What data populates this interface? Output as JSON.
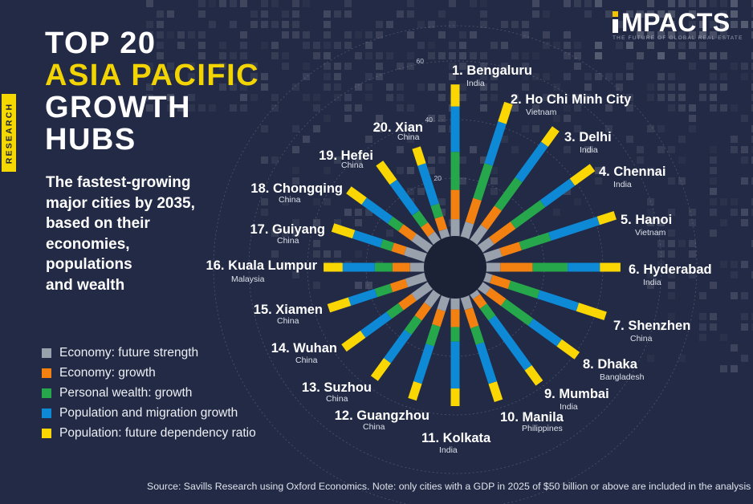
{
  "research_tab": "RESEARCH",
  "title": {
    "line1": "TOP 20",
    "line2": "ASIA PACIFIC",
    "line3": "GROWTH",
    "line4": "HUBS"
  },
  "subtitle_lines": [
    "The fastest-growing",
    "major cities by 2035,",
    "based on their",
    "economies,",
    "populations",
    "and wealth"
  ],
  "logo": {
    "text": "MPACTS",
    "tagline": "THE FUTURE OF GLOBAL REAL ESTATE"
  },
  "legend": [
    {
      "label": "Economy: future strength",
      "color": "#99A1AC"
    },
    {
      "label": "Economy: growth",
      "color": "#F28111"
    },
    {
      "label": "Personal wealth: growth",
      "color": "#26A74B"
    },
    {
      "label": "Population and migration growth",
      "color": "#0D89D6"
    },
    {
      "label": "Population: future dependency ratio",
      "color": "#FAD703"
    }
  ],
  "footer": "Source: Savills Research using Oxford Economics. Note: only cities with a GDP in 2025 of $50 billion or above are included in the analysis",
  "chart_data": {
    "type": "radial-stacked-bar",
    "ticks": [
      20,
      40,
      60
    ],
    "series_order": [
      "Economy: future strength",
      "Economy: growth",
      "Personal wealth: growth",
      "Population and migration growth",
      "Population: future dependency ratio"
    ],
    "series_colors": [
      "#99A1AC",
      "#F28111",
      "#26A74B",
      "#0D89D6",
      "#FAD703"
    ],
    "cities": [
      {
        "rank": 1,
        "name": "Bengaluru",
        "country": "India",
        "values": [
          6,
          10,
          13,
          15.5,
          7.5
        ]
      },
      {
        "rank": 2,
        "name": "Ho Chi Minh City",
        "country": "Vietnam",
        "values": [
          5.5,
          8.5,
          12.5,
          15,
          7
        ]
      },
      {
        "rank": 3,
        "name": "Delhi",
        "country": "India",
        "values": [
          6.5,
          8,
          12,
          15,
          6.5
        ]
      },
      {
        "rank": 4,
        "name": "Chennai",
        "country": "India",
        "values": [
          5,
          9,
          12.5,
          12.5,
          8.5
        ]
      },
      {
        "rank": 5,
        "name": "Hanoi",
        "country": "Vietnam",
        "values": [
          6,
          7,
          10.5,
          17.5,
          6
        ]
      },
      {
        "rank": 6,
        "name": "Hyderabad",
        "country": "India",
        "values": [
          5,
          11,
          12,
          11,
          7
        ]
      },
      {
        "rank": 7,
        "name": "Shenzhen",
        "country": "China",
        "values": [
          2.5,
          6.5,
          10.5,
          14,
          10
        ]
      },
      {
        "rank": 8,
        "name": "Dhaka",
        "country": "Bangladesh",
        "values": [
          3.5,
          6.5,
          11.5,
          12,
          7.5
        ]
      },
      {
        "rank": 9,
        "name": "Mumbai",
        "country": "India",
        "values": [
          2,
          4,
          5,
          21,
          6.5
        ]
      },
      {
        "rank": 10,
        "name": "Manila",
        "country": "Philippines",
        "values": [
          4.5,
          6.5,
          6,
          14,
          6.5
        ]
      },
      {
        "rank": 11,
        "name": "Kolkata",
        "country": "India",
        "values": [
          4,
          6,
          5,
          16,
          6
        ]
      },
      {
        "rank": 12,
        "name": "Guangzhou",
        "country": "China",
        "values": [
          5,
          5.5,
          7,
          13.5,
          6
        ]
      },
      {
        "rank": 13,
        "name": "Suzhou",
        "country": "China",
        "values": [
          5.5,
          5.5,
          6,
          12,
          7.5
        ]
      },
      {
        "rank": 14,
        "name": "Wuhan",
        "country": "China",
        "values": [
          7,
          5.5,
          5,
          11,
          8
        ]
      },
      {
        "rank": 15,
        "name": "Xiamen",
        "country": "China",
        "values": [
          7,
          5.5,
          5.5,
          9.5,
          7.5
        ]
      },
      {
        "rank": 16,
        "name": "Kuala Lumpur",
        "country": "Malaysia",
        "values": [
          5,
          6,
          6,
          11,
          6.5
        ]
      },
      {
        "rank": 17,
        "name": "Guiyang",
        "country": "China",
        "values": [
          7.5,
          4.5,
          4,
          10,
          7.5
        ]
      },
      {
        "rank": 18,
        "name": "Chongqing",
        "country": "China",
        "values": [
          7,
          5.5,
          4.5,
          11,
          6.5
        ]
      },
      {
        "rank": 19,
        "name": "Hefei",
        "country": "China",
        "values": [
          3.5,
          4,
          5,
          13,
          8
        ]
      },
      {
        "rank": 20,
        "name": "Xian",
        "country": "China",
        "values": [
          3,
          4.5,
          4.5,
          14.5,
          6
        ]
      }
    ]
  }
}
